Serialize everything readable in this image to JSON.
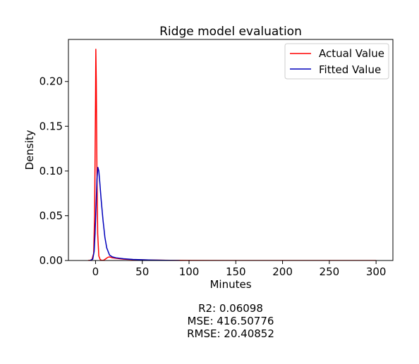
{
  "chart_data": {
    "type": "line",
    "title": "Ridge model evaluation",
    "xlabel": "Minutes",
    "ylabel": "Density",
    "xlim": [
      -29,
      318
    ],
    "ylim": [
      0,
      0.247
    ],
    "x_ticks": [
      0,
      50,
      100,
      150,
      200,
      250,
      300
    ],
    "y_ticks": [
      0.0,
      0.05,
      0.1,
      0.15,
      0.2
    ],
    "y_tick_labels": [
      "0.00",
      "0.05",
      "0.10",
      "0.15",
      "0.20"
    ],
    "grid": false,
    "legend_position": "top-right",
    "series": [
      {
        "name": "Actual Value",
        "color": "#ff0000",
        "points": [
          [
            -8,
            0
          ],
          [
            -4,
            0.0005
          ],
          [
            -2,
            0.008
          ],
          [
            -1,
            0.05
          ],
          [
            0,
            0.18
          ],
          [
            0.3,
            0.236
          ],
          [
            0.8,
            0.2
          ],
          [
            1.5,
            0.1
          ],
          [
            2.3,
            0.03
          ],
          [
            3.5,
            0.005
          ],
          [
            5,
            0.001
          ],
          [
            7,
            0
          ],
          [
            9,
            0.0005
          ],
          [
            11,
            0.002
          ],
          [
            13,
            0.0035
          ],
          [
            15,
            0.004
          ],
          [
            18,
            0.003
          ],
          [
            22,
            0.0025
          ],
          [
            30,
            0.0015
          ],
          [
            40,
            0.001
          ],
          [
            60,
            0.0005
          ],
          [
            80,
            0.0002
          ],
          [
            100,
            0.0001
          ],
          [
            150,
            5e-05
          ],
          [
            200,
            3e-05
          ],
          [
            250,
            2e-05
          ],
          [
            300,
            0
          ]
        ]
      },
      {
        "name": "Fitted Value",
        "color": "#0000bb",
        "points": [
          [
            -6,
            0
          ],
          [
            -3,
            0.0015
          ],
          [
            -1.5,
            0.01
          ],
          [
            -0.5,
            0.03
          ],
          [
            0.5,
            0.06
          ],
          [
            1.5,
            0.09
          ],
          [
            2.5,
            0.104
          ],
          [
            3.5,
            0.1
          ],
          [
            4.5,
            0.088
          ],
          [
            6,
            0.068
          ],
          [
            8,
            0.045
          ],
          [
            10,
            0.026
          ],
          [
            12,
            0.014
          ],
          [
            15,
            0.006
          ],
          [
            18,
            0.004
          ],
          [
            22,
            0.003
          ],
          [
            30,
            0.002
          ],
          [
            40,
            0.0012
          ],
          [
            60,
            0.0005
          ],
          [
            75,
            0.0002
          ],
          [
            90,
            0
          ]
        ]
      }
    ]
  },
  "metrics": {
    "r2": "R2: 0.06098",
    "mse": "MSE: 416.50776",
    "rmse": "RMSE: 20.40852"
  }
}
